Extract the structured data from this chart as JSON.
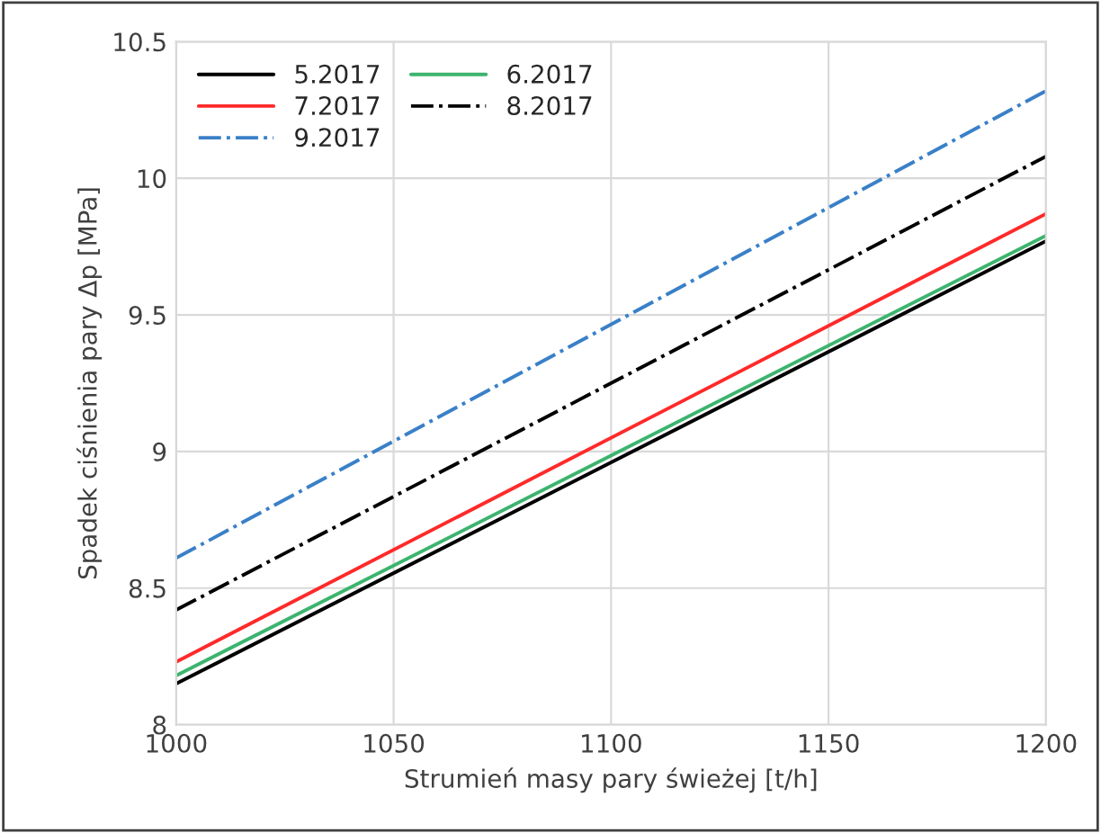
{
  "chart_data": {
    "type": "line",
    "xlabel": "Strumień masy pary świeżej [t/h]",
    "ylabel": "Spadek ciśnienia pary Δp [MPa]",
    "xlim": [
      1000,
      1200
    ],
    "xticks": [
      1000,
      1050,
      1100,
      1150,
      1200
    ],
    "ylim": [
      8,
      10.5
    ],
    "yticks": [
      8,
      8.5,
      9,
      9.5,
      10,
      10.5
    ],
    "grid": true,
    "legend": "top left",
    "marker": "none",
    "x": [
      1000,
      1200
    ],
    "series": [
      {
        "name": "5.2017",
        "color": "#000000",
        "line_style": "solid",
        "values": [
          8.15,
          9.77
        ]
      },
      {
        "name": "6.2017",
        "color": "#3cb46e",
        "line_style": "solid",
        "values": [
          8.18,
          9.79
        ]
      },
      {
        "name": "7.2017",
        "color": "#ff2a2a",
        "line_style": "solid",
        "values": [
          8.23,
          9.87
        ]
      },
      {
        "name": "8.2017",
        "color": "#000000",
        "line_style": "dashdot",
        "values": [
          8.42,
          10.08
        ]
      },
      {
        "name": "9.2017",
        "color": "#3a80c8",
        "line_style": "dashdot",
        "values": [
          8.61,
          10.32
        ]
      }
    ]
  }
}
